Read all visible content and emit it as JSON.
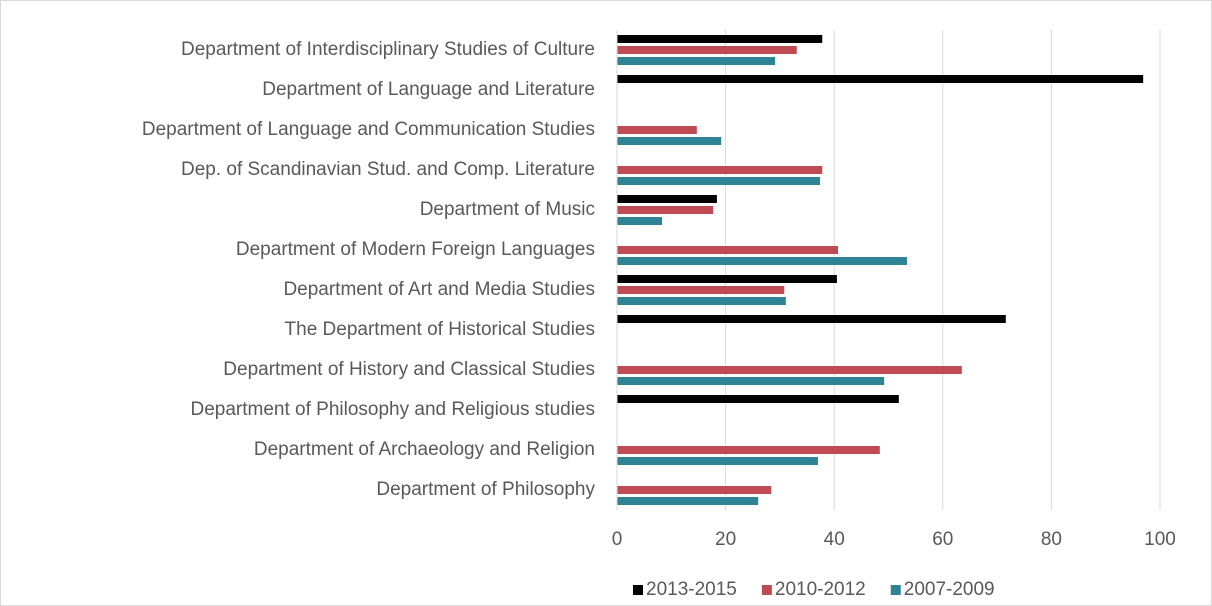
{
  "chart_data": {
    "type": "bar",
    "orientation": "horizontal",
    "categories": [
      "Department of Interdisciplinary Studies of Culture",
      "Department of Language and Literature",
      "Department of Language and Communication Studies",
      "Dep. of Scandinavian Stud. and Comp. Literature",
      "Department of Music",
      "Department of Modern Foreign Languages",
      "Department of Art and Media Studies",
      "The Department of Historical Studies",
      "Department of History and Classical Studies",
      "Department of Philosophy and Religious studies",
      "Department of Archaeology and Religion",
      "Department of Philosophy"
    ],
    "series": [
      {
        "name": "2013-2015",
        "color": "#000000",
        "values": [
          37.8,
          96.9,
          null,
          null,
          18.4,
          null,
          40.5,
          71.6,
          null,
          51.9,
          null,
          null
        ]
      },
      {
        "name": "2010-2012",
        "color": "#be4b54",
        "values": [
          33.1,
          null,
          14.7,
          37.8,
          17.7,
          40.7,
          30.8,
          null,
          63.5,
          null,
          48.4,
          28.4
        ]
      },
      {
        "name": "2007-2009",
        "color": "#2e8494",
        "values": [
          29.1,
          null,
          19.2,
          37.4,
          8.3,
          53.4,
          31.1,
          null,
          49.2,
          null,
          37.0,
          26.0
        ]
      }
    ],
    "xlim": [
      0,
      100
    ],
    "xticks": [
      0,
      20,
      40,
      60,
      80,
      100
    ],
    "grid": true,
    "legend": "bottom"
  }
}
